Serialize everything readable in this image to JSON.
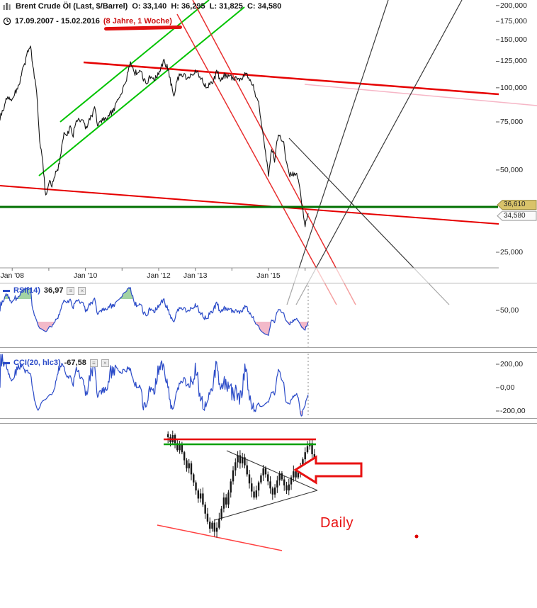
{
  "header": {
    "instrument_icon": "candlestick-chart-icon",
    "title": "Brent Crude Öl (Last, $/Barrel)",
    "ohlc": "O: 33,140  H: 36,295  L: 31,825  C: 34,580",
    "clock_icon": "clock-icon",
    "range_dates": "17.09.2007 - 15.02.2016",
    "range_duration": "(8 Jahre, 1 Woche)"
  },
  "main_axis": {
    "y_ticks": [
      {
        "label": "200,000",
        "value": 200
      },
      {
        "label": "175,000",
        "value": 175
      },
      {
        "label": "150,000",
        "value": 150
      },
      {
        "label": "125,000",
        "value": 125
      },
      {
        "label": "100,000",
        "value": 100
      },
      {
        "label": "75,000",
        "value": 75
      },
      {
        "label": "50,000",
        "value": 50
      },
      {
        "label": "25,000",
        "value": 25
      }
    ],
    "x_ticks": [
      {
        "label": "Jan '08"
      },
      {
        "label": "Jan '10"
      },
      {
        "label": "Jan '12"
      },
      {
        "label": "Jan '13"
      },
      {
        "label": "Jan '15"
      }
    ]
  },
  "price_markers": [
    {
      "label": "36,610",
      "value": 36.61,
      "fill": "#d9c36a",
      "stroke": "#9a8a40"
    },
    {
      "label": "34,580",
      "value": 34.58,
      "fill": "#fafafa",
      "stroke": "#999999"
    }
  ],
  "rsi_panel": {
    "label": "RSI(14)",
    "value": "36,97",
    "buttons": [
      {
        "icon": "settings-icon",
        "glyph": "≡"
      },
      {
        "icon": "close-icon",
        "glyph": "×"
      }
    ],
    "y_ticks": [
      {
        "label": "50,00",
        "value": 50
      }
    ]
  },
  "cci_panel": {
    "label": "CCI(20, hlc3)",
    "value": "-67,58",
    "buttons": [
      {
        "icon": "settings-icon",
        "glyph": "≡"
      },
      {
        "icon": "close-icon",
        "glyph": "×"
      }
    ],
    "y_ticks": [
      {
        "label": "200,00",
        "value": 200
      },
      {
        "label": "0,00",
        "value": 0
      },
      {
        "label": "-200,00",
        "value": -200
      }
    ]
  },
  "daily_label": "Daily",
  "chart_data": {
    "type": "line",
    "title": "Brent Crude Öl weekly 17.09.2007 - 15.02.2016 with RSI(14), CCI(20) and Daily inset",
    "main": {
      "type": "line",
      "y_scale": "log",
      "ylim": [
        22,
        210
      ],
      "x_range": [
        "2007-09",
        "2016-02"
      ],
      "last_ohlc": {
        "open": 33.14,
        "high": 36.295,
        "low": 31.825,
        "close": 34.58
      },
      "support_level": 36.61,
      "monthly_close": [
        77,
        82,
        92,
        91,
        92,
        95,
        102,
        110,
        123,
        133,
        144,
        115,
        98,
        65,
        53,
        40,
        45,
        44,
        48,
        51,
        58,
        69,
        66,
        72,
        68,
        75,
        78,
        75,
        72,
        74,
        79,
        85,
        73,
        75,
        77,
        76,
        79,
        83,
        86,
        93,
        97,
        104,
        115,
        123,
        114,
        112,
        117,
        107,
        104,
        109,
        110,
        108,
        111,
        120,
        124,
        119,
        103,
        95,
        104,
        113,
        112,
        108,
        110,
        111,
        115,
        111,
        109,
        102,
        102,
        102,
        107,
        114,
        108,
        109,
        110,
        111,
        107,
        109,
        107,
        108,
        110,
        112,
        106,
        101,
        94,
        85,
        70,
        57,
        48,
        60,
        55,
        65,
        66,
        62,
        52,
        48,
        48,
        49,
        44,
        37,
        31,
        34.58
      ],
      "trendlines": [
        {
          "name": "ascending-channel-lower",
          "x1": 55,
          "y1": 248,
          "x2": 345,
          "y2": 10,
          "color": "#00c300",
          "w": 2
        },
        {
          "name": "ascending-channel-upper",
          "x1": 85,
          "y1": 172,
          "x2": 295,
          "y2": 0,
          "color": "#00c300",
          "w": 2
        },
        {
          "name": "upper-red-resistance",
          "x1": 118,
          "y1": 88,
          "x2": 704,
          "y2": 133,
          "color": "#e60000",
          "w": 2.5
        },
        {
          "name": "faint-pink-projection",
          "x1": 430,
          "y1": 119,
          "x2": 758,
          "y2": 149,
          "color": "#f6b6c6",
          "w": 1.5
        },
        {
          "name": "lower-red-support",
          "x1": 0,
          "y1": 262,
          "x2": 704,
          "y2": 316,
          "color": "#e60000",
          "w": 2
        },
        {
          "name": "down-channel-red-a",
          "x1": 250,
          "y1": 20,
          "x2": 475,
          "y2": 430,
          "color": "#e83030",
          "w": 1.5
        },
        {
          "name": "down-channel-red-b",
          "x1": 272,
          "y1": 0,
          "x2": 502,
          "y2": 430,
          "color": "#e83030",
          "w": 1.5
        },
        {
          "name": "black-projection-a",
          "x1": 405,
          "y1": 430,
          "x2": 548,
          "y2": 0,
          "color": "#3a3a3a",
          "w": 1.2
        },
        {
          "name": "black-projection-b",
          "x1": 418,
          "y1": 430,
          "x2": 652,
          "y2": 0,
          "color": "#3a3a3a",
          "w": 1.2
        },
        {
          "name": "black-projection-c",
          "x1": 408,
          "y1": 195,
          "x2": 634,
          "y2": 430,
          "color": "#3a3a3a",
          "w": 1.2
        },
        {
          "name": "horizontal-green-support",
          "x1": 0,
          "y1": 292,
          "x2": 703,
          "y2": 292,
          "color": "#007000",
          "w": 3,
          "top": true
        }
      ]
    },
    "rsi": {
      "type": "line",
      "indicator": "RSI",
      "period": 14,
      "source": "close",
      "last": 36.97,
      "overbought": 70,
      "oversold": 30,
      "derived": "computed from main.monthly_close series"
    },
    "cci": {
      "type": "line",
      "indicator": "CCI",
      "period": 20,
      "source": "hlc3",
      "last": -67.58,
      "upper": 200,
      "lower": -200,
      "derived": "computed from main.monthly_close series"
    },
    "daily_inset": {
      "type": "candlestick",
      "timeframe": "Daily",
      "closes": [
        36.9,
        36.4,
        37.1,
        36.3,
        35.6,
        36.2,
        35.4,
        34.6,
        33.8,
        34.3,
        33.2,
        32.4,
        31.6,
        30.8,
        31.3,
        30.2,
        29.3,
        28.5,
        27.8,
        28.4,
        27.5,
        27.9,
        28.8,
        29.8,
        30.9,
        30.2,
        31.4,
        32.5,
        33.6,
        34.4,
        35.1,
        34.3,
        34.9,
        34.1,
        33.2,
        32.3,
        31.5,
        30.9,
        31.6,
        32.4,
        33.1,
        33.8,
        33.2,
        32.5,
        31.8,
        31.2,
        31.9,
        32.6,
        33.3,
        32.7,
        32.1,
        31.6,
        32.2,
        32.9,
        33.5,
        32.9,
        33.4,
        34.0,
        34.7,
        35.4,
        36.0,
        36.3,
        35.2,
        34.58
      ],
      "lines": [
        {
          "name": "daily-red-resistance",
          "x1": 231,
          "y1": 620,
          "x2": 446,
          "y2": 620,
          "color": "#e60000",
          "w": 2.5,
          "top": true
        },
        {
          "name": "daily-green-resistance",
          "x1": 231,
          "y1": 627,
          "x2": 446,
          "y2": 627,
          "color": "#00a000",
          "w": 2.5,
          "top": true
        },
        {
          "name": "triangle-upper",
          "x1": 320,
          "y1": 636,
          "x2": 448,
          "y2": 692,
          "color": "#3a3a3a",
          "w": 1.1
        },
        {
          "name": "triangle-lower",
          "x1": 303,
          "y1": 734,
          "x2": 448,
          "y2": 692,
          "color": "#3a3a3a",
          "w": 1.1
        },
        {
          "name": "lower-red-diagonal",
          "x1": 222,
          "y1": 741,
          "x2": 398,
          "y2": 777,
          "color": "#ff4040",
          "w": 1.5
        }
      ],
      "arrow_points": "417,663 446,645 446,654 510,654 510,672 446,672 446,681",
      "dot": {
        "x": 588,
        "y": 757,
        "r": 2.5,
        "color": "#dd0000"
      }
    }
  }
}
